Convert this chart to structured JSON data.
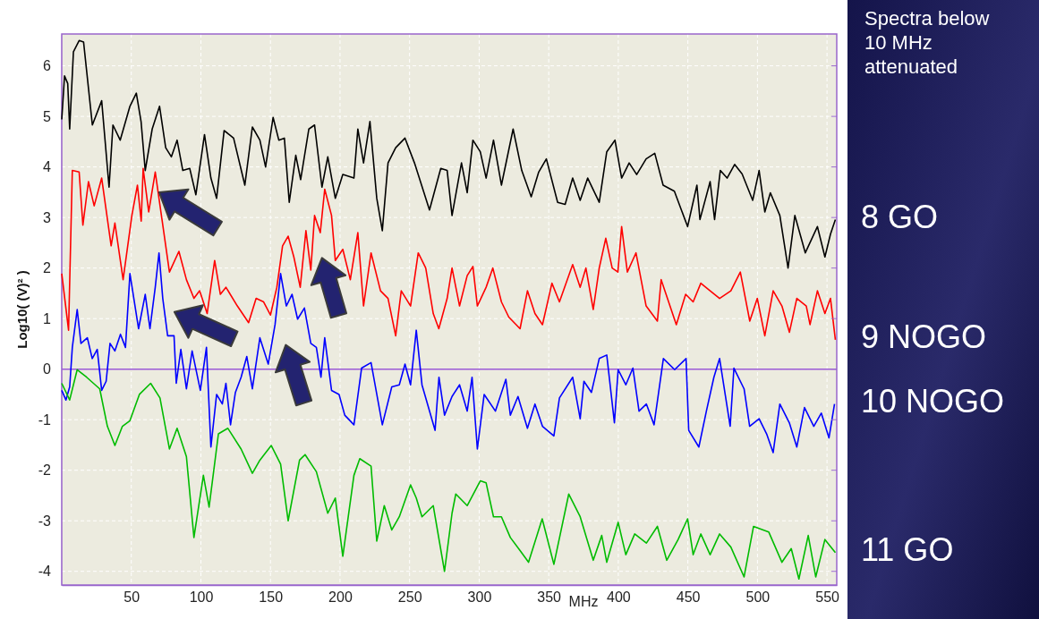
{
  "chart_data": {
    "type": "line",
    "xlabel": "MHz",
    "ylabel": "Log10( (V)² )",
    "annotations": [
      "Spectra below 10 MHz attenuated"
    ],
    "xlim": [
      0,
      557
    ],
    "ylim": [
      -4.27,
      6.63
    ],
    "xticks": [
      50,
      100,
      150,
      200,
      250,
      300,
      350,
      400,
      450,
      500,
      550
    ],
    "yticks": [
      -4,
      -3,
      -2,
      -1,
      0,
      1,
      2,
      3,
      4,
      5,
      6
    ],
    "grid": true,
    "line_style": "solid",
    "ref_lines": [
      {
        "axis": "y",
        "value": 0,
        "color": "#9b59d6"
      }
    ],
    "series": [
      {
        "name": "8 GO",
        "color": "#000000",
        "x": [
          0,
          2,
          4.3,
          5.7,
          8.4,
          12.5,
          15.7,
          22,
          28.7,
          34,
          36.8,
          42,
          49,
          53.6,
          57,
          60,
          65,
          70.3,
          74.7,
          78.8,
          82.9,
          87,
          92,
          96.4,
          102.6,
          107.2,
          111.3,
          116.7,
          123.5,
          131.6,
          137,
          142.4,
          146.5,
          151.9,
          156,
          160,
          163.5,
          168.2,
          171.7,
          177.6,
          181.7,
          187,
          191.2,
          196.6,
          202,
          210,
          212.8,
          216.9,
          221.5,
          226.4,
          230.4,
          234.5,
          240,
          246.7,
          253.5,
          264.3,
          272.4,
          277,
          280.5,
          287.3,
          291.4,
          295.5,
          300.8,
          305,
          310.3,
          316,
          324.4,
          330.6,
          337.4,
          342.8,
          348.3,
          356.4,
          361.8,
          367.2,
          372.6,
          378,
          386.3,
          391.7,
          397.6,
          402.4,
          407.8,
          413.2,
          420,
          426.2,
          432.2,
          440.3,
          449.8,
          456.5,
          458.7,
          466,
          469.2,
          473.3,
          478.2,
          483.6,
          489,
          496.6,
          501.2,
          505.3,
          509.3,
          516.1,
          522,
          526.9,
          534.4,
          543.1,
          548.5,
          552.5,
          556
        ],
        "values": [
          4.94,
          5.8,
          5.65,
          4.75,
          6.28,
          6.5,
          6.47,
          4.83,
          5.31,
          3.6,
          4.83,
          4.53,
          5.2,
          5.46,
          4.9,
          3.93,
          4.75,
          5.2,
          4.38,
          4.2,
          4.53,
          3.93,
          3.97,
          3.45,
          4.64,
          3.78,
          3.38,
          4.72,
          4.57,
          3.64,
          4.79,
          4.53,
          4.0,
          4.98,
          4.53,
          4.57,
          3.3,
          4.23,
          3.75,
          4.75,
          4.83,
          3.6,
          4.2,
          3.38,
          3.85,
          3.78,
          4.75,
          4.08,
          4.9,
          3.38,
          2.74,
          4.08,
          4.38,
          4.57,
          4.08,
          3.15,
          3.97,
          3.93,
          3.04,
          4.08,
          3.49,
          4.53,
          4.3,
          3.78,
          4.53,
          3.64,
          4.75,
          3.93,
          3.41,
          3.9,
          4.16,
          3.3,
          3.26,
          3.78,
          3.34,
          3.78,
          3.3,
          4.3,
          4.53,
          3.78,
          4.08,
          3.85,
          4.16,
          4.27,
          3.64,
          3.52,
          2.82,
          3.64,
          2.96,
          3.71,
          2.96,
          3.93,
          3.78,
          4.05,
          3.86,
          3.34,
          3.93,
          3.11,
          3.49,
          3.04,
          2.0,
          3.04,
          2.3,
          2.82,
          2.22,
          2.67,
          2.96
        ]
      },
      {
        "name": "9 NOGO",
        "color": "#ff0000",
        "x": [
          0,
          4.9,
          7.6,
          12.5,
          15.2,
          19.2,
          23.3,
          28.7,
          35.5,
          38.2,
          44.1,
          50.4,
          54.4,
          57.1,
          58.5,
          62.5,
          67.2,
          72,
          77.4,
          84.2,
          89.6,
          95,
          99.1,
          104.5,
          109.9,
          114,
          118,
          126.2,
          134.3,
          139.7,
          145.1,
          150,
          154.6,
          158.7,
          162.7,
          166.8,
          171.4,
          175.5,
          179,
          181.7,
          185.8,
          189,
          193.9,
          196.6,
          202,
          207.4,
          212.8,
          216.9,
          222.3,
          229.1,
          234.5,
          240,
          244,
          250.7,
          256.2,
          261.6,
          267,
          271,
          277,
          280.5,
          285.9,
          291.4,
          295.5,
          298.7,
          305,
          309.8,
          316,
          321.3,
          329.4,
          334.7,
          340.1,
          345.5,
          352.3,
          357.7,
          367.2,
          372.6,
          376.7,
          382,
          386.3,
          391,
          395.6,
          399.7,
          402.4,
          406.5,
          412.7,
          420,
          428.1,
          430.8,
          441.7,
          448.4,
          453.8,
          459.3,
          466,
          472.8,
          480.9,
          487.7,
          494.5,
          499.9,
          505.3,
          511.3,
          517.6,
          523,
          528.3,
          535.1,
          537.8,
          543.1,
          548.5,
          552.5,
          556
        ],
        "values": [
          1.89,
          0.77,
          3.93,
          3.9,
          2.85,
          3.71,
          3.23,
          3.78,
          2.44,
          2.89,
          1.77,
          3.04,
          3.64,
          2.93,
          3.97,
          3.11,
          3.9,
          2.97,
          1.92,
          2.33,
          1.77,
          1.4,
          1.55,
          1.1,
          2.15,
          1.48,
          1.62,
          1.25,
          0.92,
          1.4,
          1.33,
          1.07,
          1.62,
          2.44,
          2.63,
          2.22,
          1.62,
          2.74,
          1.96,
          3.04,
          2.7,
          3.56,
          3.04,
          2.15,
          2.37,
          1.77,
          2.7,
          1.25,
          2.3,
          1.55,
          1.4,
          0.66,
          1.55,
          1.25,
          2.3,
          2.0,
          1.1,
          0.8,
          1.4,
          2.0,
          1.25,
          1.85,
          2.03,
          1.25,
          1.62,
          2.0,
          1.33,
          1.03,
          0.8,
          1.55,
          1.1,
          0.88,
          1.7,
          1.33,
          2.07,
          1.62,
          2.0,
          1.18,
          2.0,
          2.59,
          2.0,
          1.92,
          2.82,
          1.92,
          2.3,
          1.25,
          0.95,
          1.77,
          0.88,
          1.48,
          1.33,
          1.7,
          1.55,
          1.4,
          1.55,
          1.92,
          0.95,
          1.4,
          0.66,
          1.55,
          1.25,
          0.73,
          1.4,
          1.25,
          0.88,
          1.55,
          1.1,
          1.4,
          0.58
        ]
      },
      {
        "name": "10 NOGO",
        "color": "#0000ff",
        "x": [
          0,
          3,
          5.7,
          7.6,
          11.1,
          13.8,
          18.4,
          21.9,
          25.5,
          28.7,
          31.9,
          34.7,
          38.2,
          42.2,
          45.8,
          49,
          55.2,
          60,
          63.4,
          67.2,
          69.9,
          72.6,
          76.1,
          80.7,
          82.3,
          85.6,
          89.6,
          93.7,
          99.6,
          104,
          107.2,
          111.3,
          115.4,
          118,
          121.3,
          124.8,
          128.9,
          133,
          137,
          142.4,
          148.4,
          153.3,
          157.3,
          161.4,
          165.5,
          169.5,
          174.4,
          179,
          183,
          186.3,
          189,
          193.9,
          199.3,
          203.4,
          210,
          215.5,
          222.3,
          230.4,
          237.2,
          242.6,
          246.7,
          250.7,
          254.8,
          258.9,
          268.3,
          271.1,
          275.1,
          280.5,
          285.9,
          291.4,
          294.9,
          298.7,
          303.6,
          311.7,
          319.2,
          322.4,
          327.9,
          334.7,
          340.1,
          345.5,
          353.7,
          357.7,
          367.2,
          372.6,
          375.3,
          380.7,
          386.3,
          391.7,
          397.2,
          399.9,
          405.4,
          410.5,
          414.9,
          420.2,
          425.7,
          432.4,
          440.5,
          448.7,
          450.6,
          457.9,
          463.3,
          468.7,
          472.8,
          480.4,
          483.1,
          490.4,
          494.4,
          501.2,
          506.6,
          511.3,
          516.1,
          522.9,
          528.3,
          533.8,
          540.5,
          545.9,
          551.4,
          555.4
        ],
        "values": [
          -0.42,
          -0.61,
          -0.35,
          0.43,
          1.18,
          0.51,
          0.62,
          0.21,
          0.39,
          -0.42,
          -0.24,
          0.51,
          0.36,
          0.69,
          0.43,
          1.89,
          0.8,
          1.48,
          0.8,
          1.62,
          2.3,
          1.4,
          0.66,
          0.66,
          -0.28,
          0.39,
          -0.39,
          0.36,
          -0.42,
          0.43,
          -1.54,
          -0.5,
          -0.69,
          -0.28,
          -1.1,
          -0.46,
          -0.16,
          0.25,
          -0.39,
          0.62,
          0.1,
          0.88,
          1.89,
          1.25,
          1.48,
          0.99,
          1.21,
          0.51,
          0.43,
          -0.16,
          0.62,
          -0.42,
          -0.5,
          -0.91,
          -1.1,
          0.02,
          0.13,
          -1.1,
          -0.35,
          -0.31,
          0.1,
          -0.31,
          0.77,
          -0.31,
          -1.21,
          -0.16,
          -0.91,
          -0.54,
          -0.31,
          -0.83,
          -0.16,
          -1.58,
          -0.5,
          -0.83,
          -0.2,
          -0.91,
          -0.54,
          -1.17,
          -0.69,
          -1.13,
          -1.32,
          -0.57,
          -0.16,
          -0.98,
          -0.24,
          -0.46,
          0.21,
          0.28,
          -1.06,
          -0.01,
          -0.31,
          0.02,
          -0.83,
          -0.69,
          -1.1,
          0.21,
          -0.01,
          0.21,
          -1.21,
          -1.54,
          -0.83,
          -0.16,
          0.21,
          -1.13,
          0.02,
          -0.39,
          -1.13,
          -0.98,
          -1.28,
          -1.65,
          -0.69,
          -1.06,
          -1.54,
          -0.76,
          -1.13,
          -0.87,
          -1.36,
          -0.69
        ]
      },
      {
        "name": "11 GO",
        "color": "#00bb00",
        "x": [
          0,
          5.7,
          11.1,
          17.9,
          27.3,
          32.8,
          38.2,
          43.6,
          49,
          55.8,
          63.9,
          70.6,
          77.4,
          82.9,
          89.6,
          95,
          101.8,
          105.9,
          112.6,
          119.4,
          128.9,
          137,
          142.4,
          150.6,
          157.3,
          162.7,
          170.9,
          174.9,
          183,
          191.2,
          196.6,
          202,
          210,
          214.2,
          222.3,
          226.4,
          231.8,
          237.2,
          242.6,
          250.7,
          254.8,
          258.9,
          267,
          275.1,
          280.5,
          283.2,
          291.4,
          300.8,
          305,
          310.3,
          316,
          322.4,
          329.4,
          335.5,
          345.3,
          353.7,
          364.4,
          372.6,
          382,
          388.1,
          391.7,
          399.9,
          405.4,
          411.8,
          420.2,
          428.1,
          434.8,
          443,
          449.8,
          453.8,
          459.3,
          466,
          472.8,
          480.9,
          490.4,
          497.2,
          508.1,
          517.6,
          524.3,
          529.8,
          536.5,
          541.9,
          548.5,
          556
        ],
        "values": [
          -0.28,
          -0.61,
          -0.01,
          -0.16,
          -0.39,
          -1.13,
          -1.51,
          -1.13,
          -1.02,
          -0.5,
          -0.28,
          -0.57,
          -1.58,
          -1.17,
          -1.73,
          -3.33,
          -2.1,
          -2.73,
          -1.28,
          -1.17,
          -1.58,
          -2.06,
          -1.8,
          -1.51,
          -1.88,
          -3.0,
          -1.8,
          -1.69,
          -2.03,
          -2.85,
          -2.55,
          -3.7,
          -2.1,
          -1.77,
          -1.92,
          -3.4,
          -2.7,
          -3.18,
          -2.92,
          -2.29,
          -2.55,
          -2.92,
          -2.7,
          -4.0,
          -2.85,
          -2.47,
          -2.7,
          -2.21,
          -2.25,
          -2.92,
          -2.92,
          -3.33,
          -3.59,
          -3.82,
          -2.96,
          -3.86,
          -2.47,
          -2.92,
          -3.78,
          -3.29,
          -3.82,
          -3.03,
          -3.67,
          -3.26,
          -3.44,
          -3.11,
          -3.78,
          -3.37,
          -2.96,
          -3.67,
          -3.26,
          -3.67,
          -3.26,
          -3.52,
          -4.11,
          -3.11,
          -3.22,
          -3.82,
          -3.55,
          -4.15,
          -3.29,
          -4.11,
          -3.37,
          -3.63
        ]
      }
    ]
  }
}
